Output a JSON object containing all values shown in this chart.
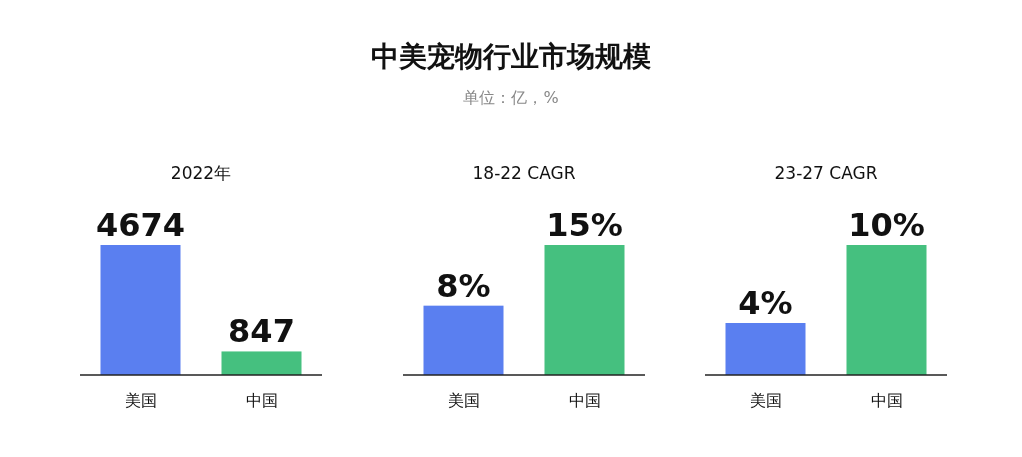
{
  "chart_data": [
    {
      "type": "bar",
      "subtitle": "2022年",
      "categories": [
        "美国",
        "中国"
      ],
      "values": [
        4674,
        847
      ],
      "colors": [
        "#5a7ff0",
        "#45c07f"
      ],
      "data_labels": true
    },
    {
      "type": "bar",
      "title": "中美宠物行业市场规模",
      "subtitle": "单位：亿，%",
      "annotations": [
        "18-22 CAGR"
      ],
      "categories": [
        "美国",
        "中国"
      ],
      "values": [
        8,
        15
      ],
      "value_labels": [
        "8%",
        "15%"
      ],
      "colors": [
        "#5a7ff0",
        "#45c07f"
      ]
    },
    {
      "type": "bar",
      "subtitle": "23-27 CAGR",
      "categories": [
        "美国",
        "中国"
      ],
      "values": [
        4,
        10
      ],
      "value_labels": [
        "4%",
        "10%"
      ],
      "colors": [
        "#5a7ff0",
        "#45c07f"
      ]
    }
  ]
}
